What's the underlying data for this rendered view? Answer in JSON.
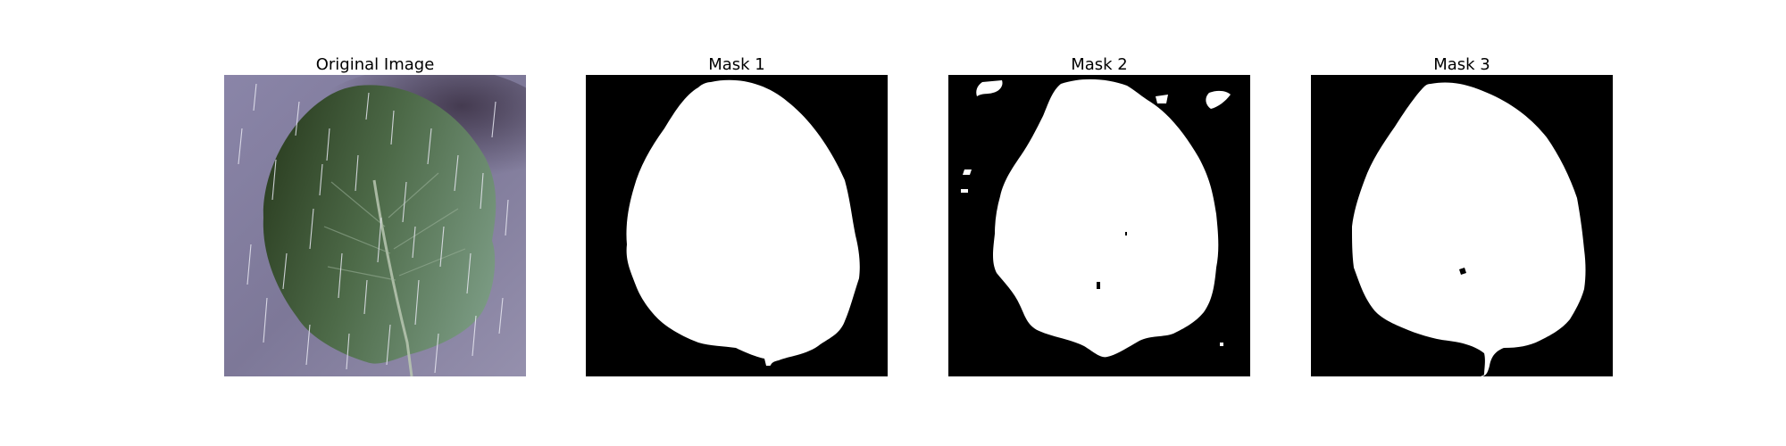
{
  "figure": {
    "panels": [
      {
        "title": "Original Image",
        "content": "leaf-photo"
      },
      {
        "title": "Mask 1",
        "content": "binary-mask"
      },
      {
        "title": "Mask 2",
        "content": "binary-mask"
      },
      {
        "title": "Mask 3",
        "content": "binary-mask"
      }
    ]
  },
  "colors": {
    "background": "#ffffff",
    "mask_background": "#000000",
    "mask_foreground": "#ffffff",
    "photo_background": "#8b85a6",
    "leaf_dark": "#2f4a2c",
    "leaf_light": "#6f8f6c"
  }
}
